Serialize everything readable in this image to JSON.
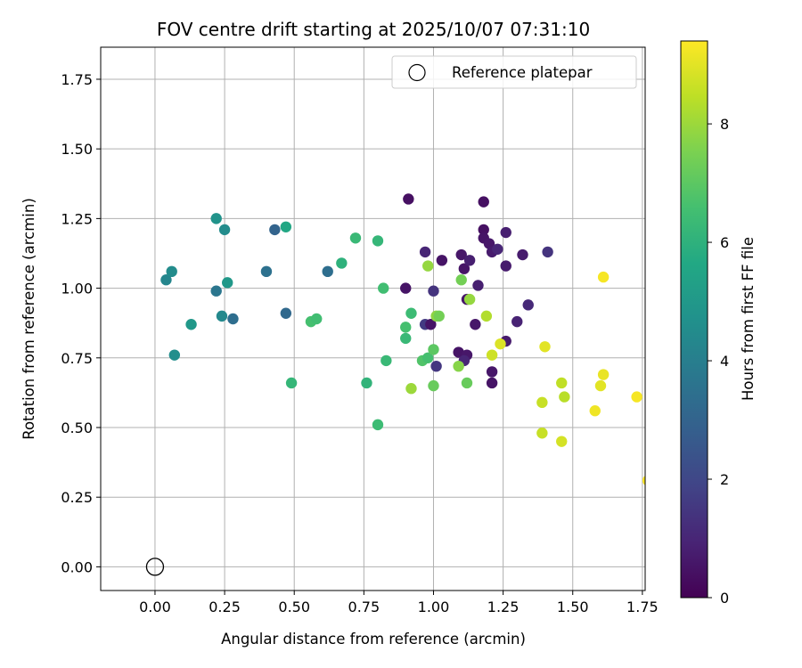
{
  "chart_data": {
    "type": "scatter",
    "title": "FOV centre drift starting at 2025/10/07 07:31:10",
    "xlabel": "Angular distance from reference (arcmin)",
    "ylabel": "Rotation from reference (arcmin)",
    "xlim": [
      -0.195,
      1.76
    ],
    "ylim": [
      -0.085,
      1.865
    ],
    "xticks": [
      "0.00",
      "0.25",
      "0.50",
      "0.75",
      "1.00",
      "1.25",
      "1.50",
      "1.75"
    ],
    "xtick_values": [
      0,
      0.25,
      0.5,
      0.75,
      1.0,
      1.25,
      1.5,
      1.75
    ],
    "yticks": [
      "0.00",
      "0.25",
      "0.50",
      "0.75",
      "1.00",
      "1.25",
      "1.50",
      "1.75"
    ],
    "ytick_values": [
      0,
      0.25,
      0.5,
      0.75,
      1.0,
      1.25,
      1.5,
      1.75
    ],
    "grid": true,
    "legend": {
      "placement": "top-right",
      "label": "Reference platepar"
    },
    "reference_point": {
      "x": 0,
      "y": 0
    },
    "colorbar": {
      "label": "Hours from first FF file",
      "min": 0,
      "max": 9.4,
      "ticks": [
        "0",
        "2",
        "4",
        "6",
        "8"
      ],
      "tick_values": [
        0,
        2,
        4,
        6,
        8
      ],
      "colormap": "viridis"
    },
    "points": [
      {
        "x": 0.91,
        "y": 1.32,
        "h": 0.4
      },
      {
        "x": 1.18,
        "y": 1.31,
        "h": 0.4
      },
      {
        "x": 1.18,
        "y": 1.21,
        "h": 0.4
      },
      {
        "x": 1.18,
        "y": 1.18,
        "h": 0.5
      },
      {
        "x": 1.2,
        "y": 1.16,
        "h": 0.6
      },
      {
        "x": 1.21,
        "y": 1.13,
        "h": 0.7
      },
      {
        "x": 1.23,
        "y": 1.14,
        "h": 1.0
      },
      {
        "x": 1.26,
        "y": 1.2,
        "h": 0.8
      },
      {
        "x": 1.26,
        "y": 1.08,
        "h": 0.7
      },
      {
        "x": 0.97,
        "y": 1.13,
        "h": 1.0
      },
      {
        "x": 1.1,
        "y": 1.12,
        "h": 0.6
      },
      {
        "x": 1.03,
        "y": 1.1,
        "h": 0.5
      },
      {
        "x": 1.11,
        "y": 1.07,
        "h": 0.5
      },
      {
        "x": 1.13,
        "y": 1.1,
        "h": 0.8
      },
      {
        "x": 1.32,
        "y": 1.12,
        "h": 0.7
      },
      {
        "x": 1.16,
        "y": 1.01,
        "h": 0.8
      },
      {
        "x": 0.9,
        "y": 1.0,
        "h": 0.5
      },
      {
        "x": 1.0,
        "y": 0.99,
        "h": 1.4
      },
      {
        "x": 1.12,
        "y": 0.96,
        "h": 0.6
      },
      {
        "x": 1.34,
        "y": 0.94,
        "h": 1.1
      },
      {
        "x": 1.3,
        "y": 0.88,
        "h": 0.9
      },
      {
        "x": 0.97,
        "y": 0.87,
        "h": 1.6
      },
      {
        "x": 0.99,
        "y": 0.87,
        "h": 0.5
      },
      {
        "x": 1.15,
        "y": 0.87,
        "h": 0.6
      },
      {
        "x": 1.26,
        "y": 0.81,
        "h": 0.7
      },
      {
        "x": 1.09,
        "y": 0.77,
        "h": 0.5
      },
      {
        "x": 1.12,
        "y": 0.76,
        "h": 0.6
      },
      {
        "x": 1.11,
        "y": 0.74,
        "h": 1.0
      },
      {
        "x": 1.01,
        "y": 0.72,
        "h": 1.5
      },
      {
        "x": 1.21,
        "y": 0.7,
        "h": 0.6
      },
      {
        "x": 1.21,
        "y": 0.66,
        "h": 0.5
      },
      {
        "x": 1.41,
        "y": 1.13,
        "h": 1.4
      },
      {
        "x": 0.43,
        "y": 1.21,
        "h": 3.0
      },
      {
        "x": 0.47,
        "y": 0.91,
        "h": 3.2
      },
      {
        "x": 0.4,
        "y": 1.06,
        "h": 3.5
      },
      {
        "x": 0.62,
        "y": 1.06,
        "h": 3.4
      },
      {
        "x": 0.28,
        "y": 0.89,
        "h": 3.4
      },
      {
        "x": 0.22,
        "y": 0.99,
        "h": 3.7
      },
      {
        "x": 0.24,
        "y": 0.9,
        "h": 4.4
      },
      {
        "x": 0.25,
        "y": 1.21,
        "h": 4.5
      },
      {
        "x": 0.22,
        "y": 1.25,
        "h": 4.8
      },
      {
        "x": 0.04,
        "y": 1.03,
        "h": 4.3
      },
      {
        "x": 0.06,
        "y": 1.06,
        "h": 4.5
      },
      {
        "x": 0.26,
        "y": 1.02,
        "h": 5.0
      },
      {
        "x": 0.13,
        "y": 0.87,
        "h": 5.0
      },
      {
        "x": 0.07,
        "y": 0.76,
        "h": 4.6
      },
      {
        "x": 0.47,
        "y": 1.22,
        "h": 5.6
      },
      {
        "x": 0.67,
        "y": 1.09,
        "h": 6.0
      },
      {
        "x": 0.72,
        "y": 1.18,
        "h": 6.3
      },
      {
        "x": 0.8,
        "y": 1.17,
        "h": 6.2
      },
      {
        "x": 0.82,
        "y": 1.0,
        "h": 6.5
      },
      {
        "x": 0.56,
        "y": 0.88,
        "h": 6.6
      },
      {
        "x": 0.58,
        "y": 0.89,
        "h": 6.5
      },
      {
        "x": 0.49,
        "y": 0.66,
        "h": 6.2
      },
      {
        "x": 0.76,
        "y": 0.66,
        "h": 6.1
      },
      {
        "x": 0.8,
        "y": 0.51,
        "h": 6.4
      },
      {
        "x": 0.83,
        "y": 0.74,
        "h": 6.3
      },
      {
        "x": 0.92,
        "y": 0.91,
        "h": 6.4
      },
      {
        "x": 0.9,
        "y": 0.86,
        "h": 6.6
      },
      {
        "x": 0.9,
        "y": 0.82,
        "h": 6.3
      },
      {
        "x": 0.96,
        "y": 0.74,
        "h": 6.8
      },
      {
        "x": 0.98,
        "y": 0.75,
        "h": 6.6
      },
      {
        "x": 1.0,
        "y": 0.78,
        "h": 7.0
      },
      {
        "x": 1.0,
        "y": 0.65,
        "h": 7.2
      },
      {
        "x": 1.12,
        "y": 0.66,
        "h": 7.2
      },
      {
        "x": 1.1,
        "y": 1.03,
        "h": 7.4
      },
      {
        "x": 0.98,
        "y": 1.08,
        "h": 7.9
      },
      {
        "x": 1.01,
        "y": 0.9,
        "h": 7.8
      },
      {
        "x": 1.02,
        "y": 0.9,
        "h": 7.4
      },
      {
        "x": 1.13,
        "y": 0.96,
        "h": 7.9
      },
      {
        "x": 1.09,
        "y": 0.72,
        "h": 7.7
      },
      {
        "x": 0.92,
        "y": 0.64,
        "h": 8.0
      },
      {
        "x": 1.19,
        "y": 0.9,
        "h": 8.3
      },
      {
        "x": 1.21,
        "y": 0.76,
        "h": 8.7
      },
      {
        "x": 1.24,
        "y": 0.8,
        "h": 8.9
      },
      {
        "x": 1.39,
        "y": 0.59,
        "h": 8.6
      },
      {
        "x": 1.39,
        "y": 0.48,
        "h": 8.6
      },
      {
        "x": 1.46,
        "y": 0.66,
        "h": 8.5
      },
      {
        "x": 1.47,
        "y": 0.61,
        "h": 8.4
      },
      {
        "x": 1.46,
        "y": 0.45,
        "h": 8.8
      },
      {
        "x": 1.4,
        "y": 0.79,
        "h": 9.0
      },
      {
        "x": 1.6,
        "y": 0.65,
        "h": 9.0
      },
      {
        "x": 1.61,
        "y": 0.69,
        "h": 9.1
      },
      {
        "x": 1.58,
        "y": 0.56,
        "h": 9.2
      },
      {
        "x": 1.61,
        "y": 1.04,
        "h": 9.3
      },
      {
        "x": 1.73,
        "y": 0.61,
        "h": 9.3
      },
      {
        "x": 1.77,
        "y": 0.31,
        "h": 9.4
      }
    ]
  }
}
